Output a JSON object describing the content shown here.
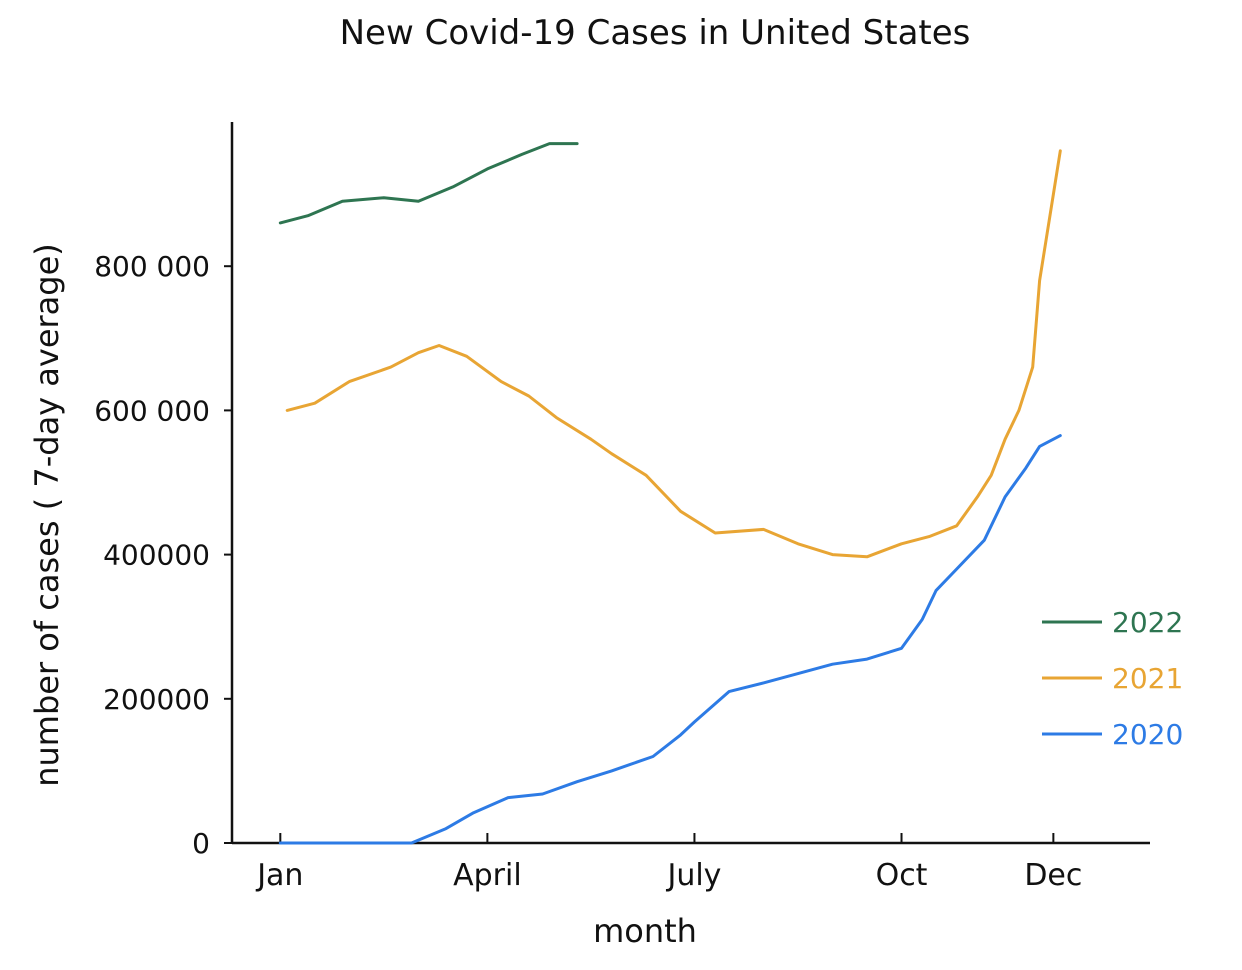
{
  "chart_data": {
    "type": "line",
    "title": "New Covid-19 Cases in United States",
    "xlabel": "month",
    "ylabel": "number of cases ( 7-day average)",
    "x_ticks": [
      {
        "label": "Jan",
        "value": 1
      },
      {
        "label": "April",
        "value": 4
      },
      {
        "label": "July",
        "value": 7
      },
      {
        "label": "Oct",
        "value": 10
      },
      {
        "label": "Dec",
        "value": 12.2
      }
    ],
    "y_ticks": [
      {
        "label": "0",
        "value": 0
      },
      {
        "label": "200000",
        "value": 200000
      },
      {
        "label": "400000",
        "value": 400000
      },
      {
        "label": "600 000",
        "value": 600000
      },
      {
        "label": "800 000",
        "value": 800000
      }
    ],
    "xlim": [
      0.3,
      13.6
    ],
    "ylim": [
      0,
      1000000
    ],
    "grid": false,
    "legend_position": "right",
    "series": [
      {
        "name": "2022",
        "color": "#2e7551",
        "x": [
          1.0,
          1.4,
          1.9,
          2.5,
          3.0,
          3.5,
          4.0,
          4.5,
          4.9,
          5.3
        ],
        "y": [
          860000,
          870000,
          890000,
          895000,
          890000,
          910000,
          935000,
          955000,
          970000,
          970000
        ]
      },
      {
        "name": "2021",
        "color": "#e8a534",
        "x": [
          1.1,
          1.5,
          2.0,
          2.6,
          3.0,
          3.3,
          3.7,
          4.2,
          4.6,
          5.0,
          5.5,
          5.8,
          6.3,
          6.8,
          7.3,
          8.0,
          8.5,
          9.0,
          9.5,
          10.0,
          10.4,
          10.8,
          11.1,
          11.3,
          11.5,
          11.7,
          11.9,
          12.0,
          12.1,
          12.2,
          12.3
        ],
        "y": [
          600000,
          610000,
          640000,
          660000,
          680000,
          690000,
          675000,
          640000,
          620000,
          590000,
          560000,
          540000,
          510000,
          460000,
          430000,
          435000,
          415000,
          400000,
          397000,
          415000,
          425000,
          440000,
          480000,
          510000,
          560000,
          600000,
          660000,
          780000,
          840000,
          900000,
          960000
        ]
      },
      {
        "name": "2020",
        "color": "#2d7be5",
        "x": [
          1.0,
          2.0,
          2.9,
          3.4,
          3.8,
          4.3,
          4.8,
          5.3,
          5.8,
          6.4,
          6.8,
          7.0,
          7.5,
          8.0,
          8.5,
          9.0,
          9.5,
          10.0,
          10.3,
          10.5,
          10.8,
          11.2,
          11.5,
          11.8,
          12.0,
          12.3
        ],
        "y": [
          0,
          0,
          0,
          20000,
          42000,
          63000,
          68000,
          85000,
          100000,
          120000,
          150000,
          168000,
          210000,
          222000,
          235000,
          248000,
          255000,
          270000,
          310000,
          350000,
          380000,
          420000,
          480000,
          520000,
          550000,
          565000
        ]
      }
    ]
  }
}
